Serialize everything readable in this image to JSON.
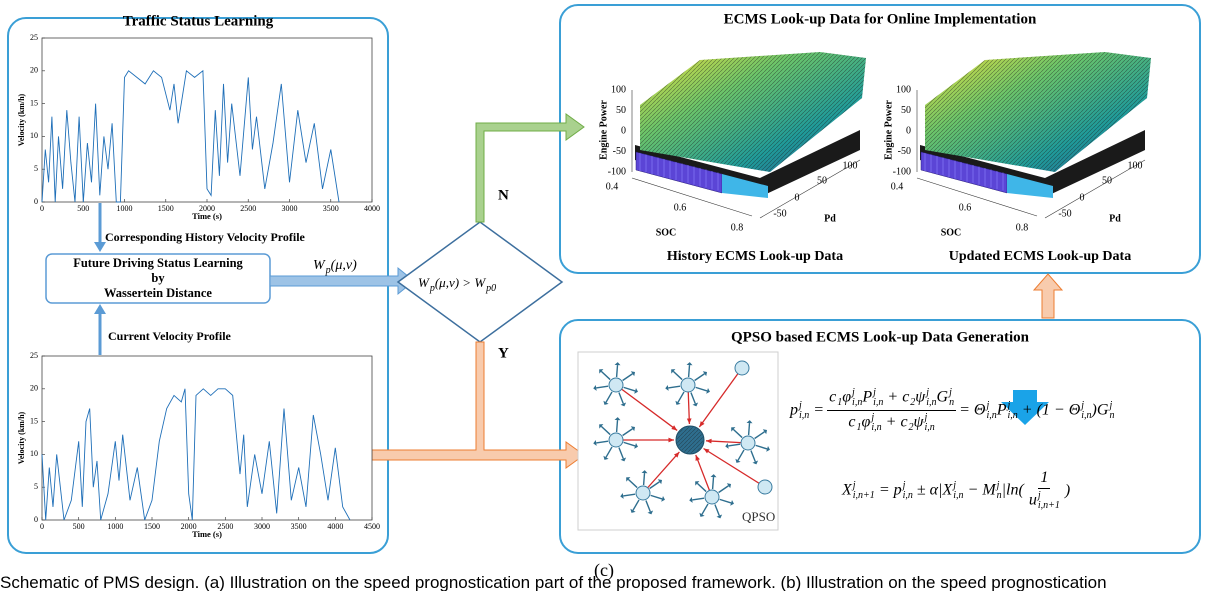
{
  "left_panel": {
    "title": "Traffic Status Learning",
    "history_label": "Corresponding History Velocity Profile",
    "current_label": "Current Velocity Profile",
    "box": {
      "line1": "Future Driving Status Learning",
      "line2": "by",
      "line3": "Wassertein Distance"
    },
    "arrow_label": "W_{p}(μ,v)"
  },
  "velocity_plots": [
    {
      "ylabel": "Velocity (km/h)",
      "xlabel": "Time (s)",
      "color": "#1f6fb8",
      "xlim": [
        0,
        4000
      ],
      "ylim": [
        0,
        25
      ],
      "xticks": [
        0,
        500,
        1000,
        1500,
        2000,
        2500,
        3000,
        3500,
        4000
      ],
      "yticks": [
        0,
        5,
        10,
        15,
        20,
        25
      ],
      "x": [
        0,
        40,
        80,
        120,
        160,
        200,
        250,
        300,
        350,
        400,
        450,
        500,
        550,
        600,
        650,
        700,
        750,
        800,
        850,
        900,
        950,
        1000,
        1050,
        1150,
        1250,
        1350,
        1450,
        1550,
        1600,
        1650,
        1700,
        1750,
        1850,
        1950,
        2000,
        2050,
        2100,
        2150,
        2200,
        2250,
        2300,
        2400,
        2500,
        2550,
        2600,
        2700,
        2800,
        2900,
        3000,
        3100,
        3200,
        3300,
        3400,
        3500,
        3600
      ],
      "values": [
        0,
        8,
        3,
        13,
        0,
        10,
        2,
        14,
        6,
        0,
        13,
        0,
        9,
        3,
        15,
        1,
        10,
        5,
        12,
        0,
        0,
        19,
        20,
        19,
        18,
        20,
        19,
        14,
        18,
        12,
        16,
        20,
        19,
        20,
        2,
        1,
        14,
        4,
        18,
        6,
        15,
        4,
        19,
        8,
        13,
        2,
        9,
        18,
        3,
        14,
        6,
        12,
        2,
        8,
        0
      ]
    },
    {
      "ylabel": "Velocity (km/h)",
      "xlabel": "Time (s)",
      "color": "#1f6fb8",
      "xlim": [
        0,
        4500
      ],
      "ylim": [
        0,
        25
      ],
      "xticks": [
        0,
        500,
        1000,
        1500,
        2000,
        2500,
        3000,
        3500,
        4000,
        4500
      ],
      "yticks": [
        0,
        5,
        10,
        15,
        20,
        25
      ],
      "x": [
        0,
        50,
        100,
        150,
        200,
        300,
        400,
        500,
        550,
        600,
        650,
        700,
        750,
        800,
        900,
        1000,
        1050,
        1100,
        1200,
        1300,
        1400,
        1500,
        1600,
        1700,
        1800,
        1900,
        1950,
        2000,
        2050,
        2100,
        2200,
        2300,
        2400,
        2500,
        2600,
        2700,
        2750,
        2800,
        2900,
        3000,
        3100,
        3200,
        3300,
        3400,
        3500,
        3600,
        3700,
        3800,
        3900,
        4000,
        4100,
        4200
      ],
      "values": [
        10,
        0,
        8,
        2,
        10,
        0,
        3,
        12,
        2,
        15,
        17,
        5,
        9,
        0,
        4,
        12,
        6,
        13,
        3,
        8,
        0,
        3,
        12,
        17,
        19,
        18,
        20,
        4,
        0,
        19,
        20,
        19,
        20,
        20,
        19,
        7,
        13,
        2,
        10,
        4,
        12,
        1,
        17,
        3,
        8,
        2,
        16,
        10,
        3,
        11,
        2,
        0
      ]
    }
  ],
  "decision": {
    "condition": "W_{p}(μ,v) > W_{p0}",
    "no": "N",
    "yes": "Y"
  },
  "ecms_panel": {
    "title": "ECMS Look-up Data for Online Implementation",
    "plots": [
      {
        "caption": "History ECMS Look-up Data",
        "zlabel": "Engine Power",
        "xlabel": "SOC",
        "ylabel": "Pd",
        "zticks": [
          100,
          50,
          0,
          -50,
          -100
        ],
        "xticks": [
          0.4,
          0.6,
          0.8
        ],
        "yticks": [
          -50,
          0,
          50,
          100
        ]
      },
      {
        "caption": "Updated ECMS Look-up Data",
        "zlabel": "Engine Power",
        "xlabel": "SOC",
        "ylabel": "Pd",
        "zticks": [
          100,
          50,
          0,
          -50,
          -100
        ],
        "xticks": [
          0.4,
          0.6,
          0.8
        ],
        "yticks": [
          -50,
          0,
          50,
          100
        ]
      }
    ]
  },
  "qpso_panel": {
    "title": "QPSO based ECMS Look-up Data Generation",
    "image_label": "QPSO",
    "formula1": {
      "lhs": "p_{i,n}^{j} =",
      "numerator": "c_{1}φ_{i,n}^{j}P_{i,n}^{j} + c_{2}ψ_{i,n}^{j}G_{n}^{j}",
      "denominator": "c_{1}φ_{i,n}^{j} + c_{2}ψ_{i,n}^{j}",
      "rhs": "= Θ_{i,n}^{j}P_{i,n}^{j} + (1 − Θ_{i,n}^{j})G_{n}^{j}"
    },
    "formula2": {
      "lhs": "X_{i,n+1}^{j} = p_{i,n}^{j} ± α|X_{i,n}^{j} − M_{n}^{j}|ln(",
      "numerator": "1",
      "denominator": "u_{i,n+1}^{j}",
      "rhs": ")"
    }
  },
  "figure_label": "(c)",
  "caption": "Schematic of PMS design. (a) Illustration on the speed prognostication part of the proposed framework. (b) Illustration on the speed prognostication"
}
